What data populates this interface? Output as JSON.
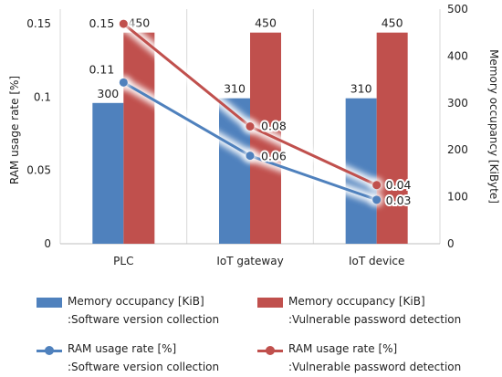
{
  "chart_data": {
    "type": "bar+line",
    "categories": [
      "PLC",
      "IoT gateway",
      "IoT device"
    ],
    "bar_series": [
      {
        "legend_line1": "Memory occupancy [KiB]",
        "legend_line2": ":Software version collection",
        "values": [
          300,
          310,
          310
        ],
        "labels": [
          "300",
          "310",
          "310"
        ],
        "color": "#4f81bd"
      },
      {
        "legend_line1": "Memory occupancy [KiB]",
        "legend_line2": ":Vulnerable password detection",
        "values": [
          450,
          450,
          450
        ],
        "labels": [
          "450",
          "450",
          "450"
        ],
        "color": "#c0504d"
      }
    ],
    "line_series": [
      {
        "legend_line1": "RAM usage rate [%]",
        "legend_line2": ":Software version collection",
        "values": [
          0.11,
          0.06,
          0.03
        ],
        "labels": [
          "0.11",
          "0.06",
          "0.03"
        ],
        "color": "#4f81bd"
      },
      {
        "legend_line1": "RAM usage rate [%]",
        "legend_line2": ":Vulnerable password detection",
        "values": [
          0.15,
          0.08,
          0.04
        ],
        "labels": [
          "0.15",
          "0.08",
          "0.04"
        ],
        "color": "#c0504d"
      }
    ],
    "ylabel_left": "RAM usage rate [%]",
    "ylim_left": [
      0,
      0.16
    ],
    "yticks_left": [
      "0",
      "0.05",
      "0.1",
      "0.15"
    ],
    "ylabel_right": "Memory occupancy [KiByte]",
    "ylim_right": [
      0,
      500
    ],
    "yticks_right": [
      "0",
      "100",
      "200",
      "300",
      "400",
      "500"
    ],
    "grid": "vertical"
  }
}
